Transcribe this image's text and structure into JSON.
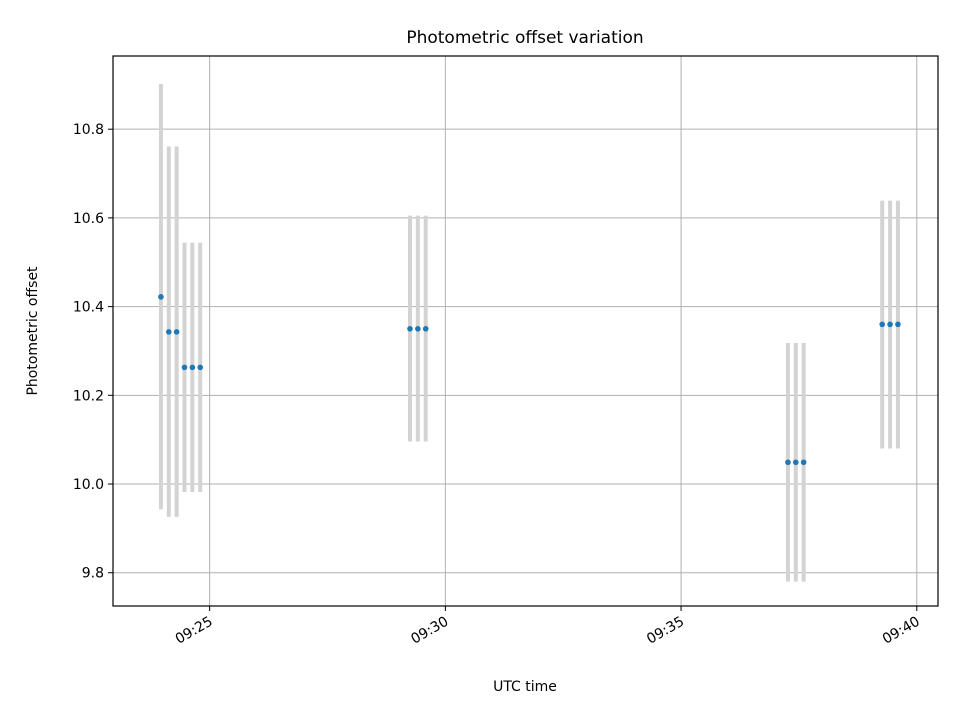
{
  "chart_data": {
    "type": "scatter",
    "title": "Photometric offset variation",
    "xlabel": "UTC time",
    "ylabel": "Photometric offset",
    "x_ticks": [
      "09:25",
      "09:30",
      "09:35",
      "09:40"
    ],
    "y_ticks": [
      "9.8",
      "10.0",
      "10.2",
      "10.4",
      "10.6",
      "10.8"
    ],
    "xlim": [
      "09:22:57",
      "09:40:27"
    ],
    "ylim": [
      9.725,
      10.965
    ],
    "grid": true,
    "colors": {
      "marker": "#1f77b4",
      "errorbar": "#d3d3d3",
      "grid": "#b0b0b0",
      "axes": "#000000"
    },
    "points": [
      {
        "x": "09:23:58",
        "y": 10.422,
        "ymin": 9.943,
        "ymax": 10.902
      },
      {
        "x": "09:24:08",
        "y": 10.343,
        "ymin": 9.926,
        "ymax": 10.761
      },
      {
        "x": "09:24:18",
        "y": 10.343,
        "ymin": 9.926,
        "ymax": 10.761
      },
      {
        "x": "09:24:28",
        "y": 10.263,
        "ymin": 9.982,
        "ymax": 10.544
      },
      {
        "x": "09:24:38",
        "y": 10.263,
        "ymin": 9.982,
        "ymax": 10.544
      },
      {
        "x": "09:24:48",
        "y": 10.263,
        "ymin": 9.982,
        "ymax": 10.544
      },
      {
        "x": "09:29:15",
        "y": 10.35,
        "ymin": 10.096,
        "ymax": 10.605
      },
      {
        "x": "09:29:25",
        "y": 10.35,
        "ymin": 10.096,
        "ymax": 10.605
      },
      {
        "x": "09:29:35",
        "y": 10.35,
        "ymin": 10.096,
        "ymax": 10.605
      },
      {
        "x": "09:37:16",
        "y": 10.049,
        "ymin": 9.78,
        "ymax": 10.318
      },
      {
        "x": "09:37:26",
        "y": 10.049,
        "ymin": 9.78,
        "ymax": 10.318
      },
      {
        "x": "09:37:36",
        "y": 10.049,
        "ymin": 9.78,
        "ymax": 10.318
      },
      {
        "x": "09:39:16",
        "y": 10.36,
        "ymin": 10.08,
        "ymax": 10.639
      },
      {
        "x": "09:39:26",
        "y": 10.36,
        "ymin": 10.08,
        "ymax": 10.639
      },
      {
        "x": "09:39:36",
        "y": 10.36,
        "ymin": 10.08,
        "ymax": 10.639
      }
    ]
  }
}
